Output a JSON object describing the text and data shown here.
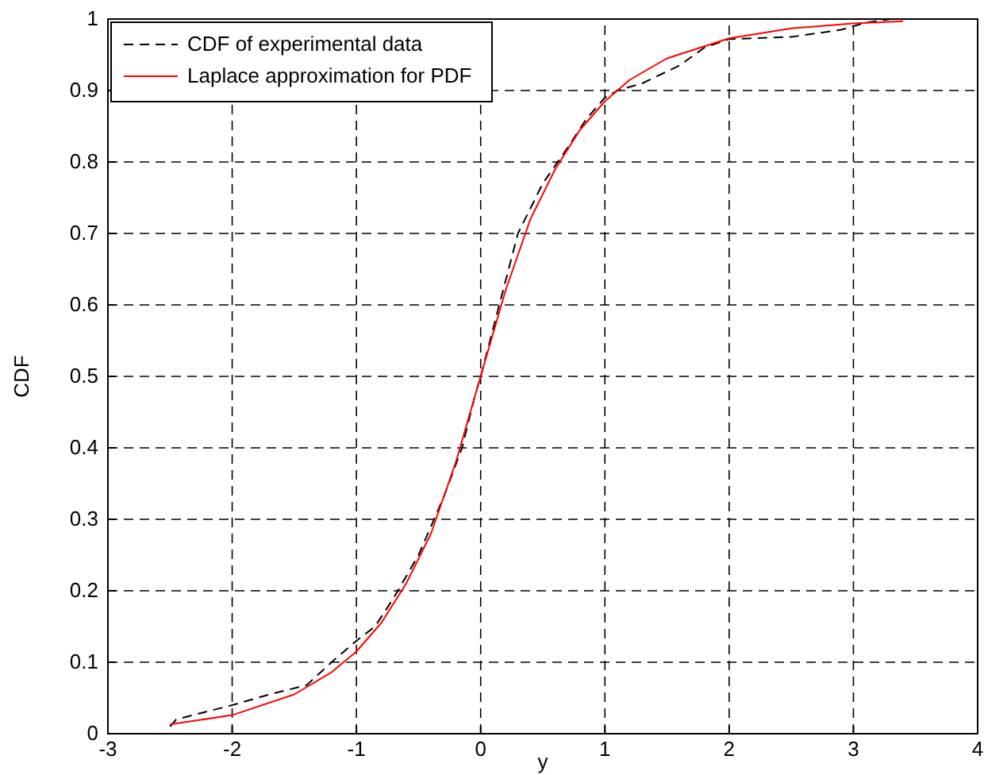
{
  "chart_data": {
    "type": "line",
    "xlabel": "y",
    "ylabel": "CDF",
    "xlim": [
      -3,
      4
    ],
    "ylim": [
      0,
      1
    ],
    "xticks": [
      -3,
      -2,
      -1,
      0,
      1,
      2,
      3,
      4
    ],
    "yticks": [
      0,
      0.1,
      0.2,
      0.3,
      0.4,
      0.5,
      0.6,
      0.7,
      0.8,
      0.9,
      1
    ],
    "grid": true,
    "legend": "top left",
    "series": [
      {
        "name": "CDF of experimental data",
        "color": "#000000",
        "line_style": "dashed",
        "x": [
          -2.5,
          -2.45,
          -2,
          -1.7,
          -1.4,
          -1.2,
          -1,
          -0.85,
          -0.7,
          -0.5,
          -0.3,
          -0.15,
          -0.05,
          0,
          0.15,
          0.3,
          0.5,
          0.7,
          0.85,
          1,
          1.1,
          1.3,
          1.6,
          1.8,
          2,
          2.5,
          2.9,
          3.1,
          3.3
        ],
        "values": [
          0.01,
          0.02,
          0.04,
          0.055,
          0.068,
          0.1,
          0.13,
          0.15,
          0.19,
          0.25,
          0.33,
          0.4,
          0.47,
          0.5,
          0.6,
          0.7,
          0.77,
          0.82,
          0.86,
          0.89,
          0.9,
          0.91,
          0.935,
          0.96,
          0.972,
          0.975,
          0.985,
          0.995,
          1
        ]
      },
      {
        "name": "Laplace approximation for PDF",
        "color": "#ff0000",
        "line_style": "solid",
        "x": [
          -2.5,
          -2,
          -1.5,
          -1.2,
          -1,
          -0.8,
          -0.6,
          -0.4,
          -0.2,
          0,
          0.2,
          0.4,
          0.6,
          0.8,
          1,
          1.2,
          1.5,
          2,
          2.5,
          3,
          3.4
        ],
        "values": [
          0.013,
          0.026,
          0.055,
          0.086,
          0.115,
          0.155,
          0.21,
          0.28,
          0.38,
          0.5,
          0.62,
          0.72,
          0.79,
          0.845,
          0.885,
          0.915,
          0.945,
          0.973,
          0.987,
          0.994,
          0.997
        ]
      }
    ]
  }
}
